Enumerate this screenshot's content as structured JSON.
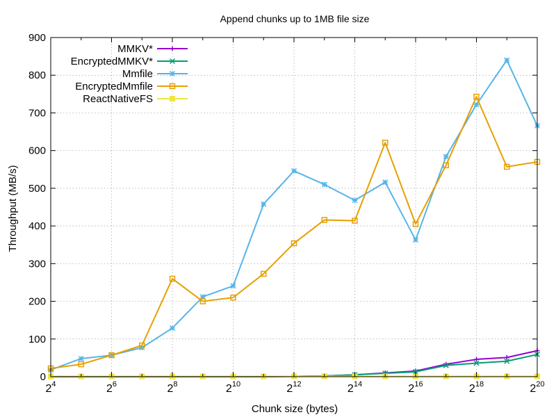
{
  "chart_data": {
    "type": "line",
    "title": "Append chunks up to 1MB file size",
    "xlabel": "Chunk size (bytes)",
    "ylabel": "Throughput (MB/s)",
    "x_scale": "log2",
    "x_ticks": [
      {
        "base": "2",
        "exp": "4",
        "value": 16
      },
      {
        "base": "2",
        "exp": "6",
        "value": 64
      },
      {
        "base": "2",
        "exp": "8",
        "value": 256
      },
      {
        "base": "2",
        "exp": "10",
        "value": 1024
      },
      {
        "base": "2",
        "exp": "12",
        "value": 4096
      },
      {
        "base": "2",
        "exp": "14",
        "value": 16384
      },
      {
        "base": "2",
        "exp": "16",
        "value": 65536
      },
      {
        "base": "2",
        "exp": "18",
        "value": 262144
      },
      {
        "base": "2",
        "exp": "20",
        "value": 1048576
      }
    ],
    "xlim": [
      16,
      1048576
    ],
    "ylim": [
      0,
      900
    ],
    "y_ticks": [
      "0",
      "100",
      "200",
      "300",
      "400",
      "500",
      "600",
      "700",
      "800",
      "900"
    ],
    "grid": true,
    "legend_position": "top-left",
    "x": [
      16,
      32,
      64,
      128,
      256,
      512,
      1024,
      2048,
      4096,
      8192,
      16384,
      32768,
      65536,
      131072,
      262144,
      524288,
      1048576
    ],
    "series": [
      {
        "name": "MMKV*",
        "color": "#9400d3",
        "marker": "plus",
        "values": [
          0.5,
          0.5,
          0.5,
          0.5,
          0.5,
          0.5,
          0.5,
          0.5,
          1,
          2,
          5,
          10,
          15,
          33,
          46,
          51,
          69
        ]
      },
      {
        "name": "EncryptedMMKV*",
        "color": "#009e73",
        "marker": "cross",
        "values": [
          0.5,
          0.5,
          0.5,
          0.5,
          0.5,
          0.5,
          0.5,
          0.5,
          1,
          2,
          5,
          9,
          13,
          30,
          36,
          41,
          59
        ]
      },
      {
        "name": "Mmfile",
        "color": "#56b4e9",
        "marker": "star",
        "values": [
          18,
          48,
          57,
          77,
          129,
          212,
          241,
          458,
          546,
          510,
          468,
          516,
          363,
          584,
          722,
          840,
          666
        ]
      },
      {
        "name": "EncryptedMmfile",
        "color": "#e69f00",
        "marker": "box",
        "values": [
          22,
          33,
          57,
          83,
          260,
          200,
          210,
          273,
          354,
          416,
          414,
          621,
          405,
          561,
          743,
          557,
          570
        ]
      },
      {
        "name": "ReactNativeFS",
        "color": "#f0e442",
        "marker": "filled-box",
        "values": [
          1,
          1,
          1,
          1,
          1,
          1,
          1,
          1,
          1,
          1,
          1,
          1,
          1,
          1,
          1,
          1,
          1
        ]
      }
    ]
  }
}
